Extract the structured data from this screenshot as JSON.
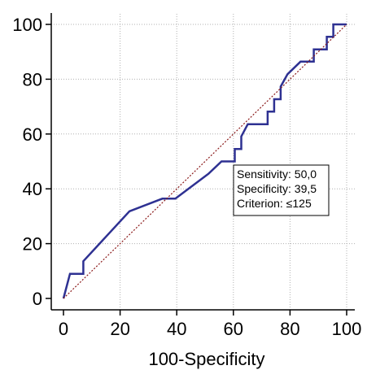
{
  "chart_data": {
    "type": "line",
    "xlabel": "100-Specificity",
    "ylabel": "",
    "xlim": [
      0,
      100
    ],
    "ylim": [
      0,
      100
    ],
    "x_ticks": [
      0,
      20,
      40,
      60,
      80,
      100
    ],
    "y_ticks": [
      0,
      20,
      40,
      60,
      80,
      100
    ],
    "grid": true,
    "series": [
      {
        "style": "roc-curve",
        "x": [
          0,
          2.3,
          2.3,
          7,
          7,
          23.3,
          34.9,
          39.5,
          51.2,
          55.8,
          60.5,
          60.5,
          62.8,
          62.8,
          65.1,
          72.1,
          72.1,
          74.4,
          74.4,
          76.7,
          76.7,
          79.1,
          83.7,
          88.4,
          88.4,
          93,
          93,
          95.3,
          95.3,
          100
        ],
        "y": [
          0,
          9,
          9,
          9,
          13.6,
          31.8,
          36.4,
          36.4,
          45.5,
          50,
          50,
          54.5,
          54.5,
          59.1,
          63.6,
          63.6,
          68.2,
          68.2,
          72.7,
          72.7,
          77.3,
          81.8,
          86.4,
          86.4,
          90.9,
          90.9,
          95.5,
          95.5,
          100,
          100
        ]
      },
      {
        "style": "reference-diagonal",
        "x": [
          0,
          100
        ],
        "y": [
          0,
          100
        ]
      }
    ],
    "annotation": {
      "lines": [
        "Sensitivity: 50,0",
        "Specificity: 39,5",
        "Criterion: ≤125"
      ]
    },
    "colors": {
      "roc": "#2e3192",
      "diagonal": "#8b1a1a",
      "grid": "#b0b0b0",
      "axis": "#000000"
    }
  }
}
